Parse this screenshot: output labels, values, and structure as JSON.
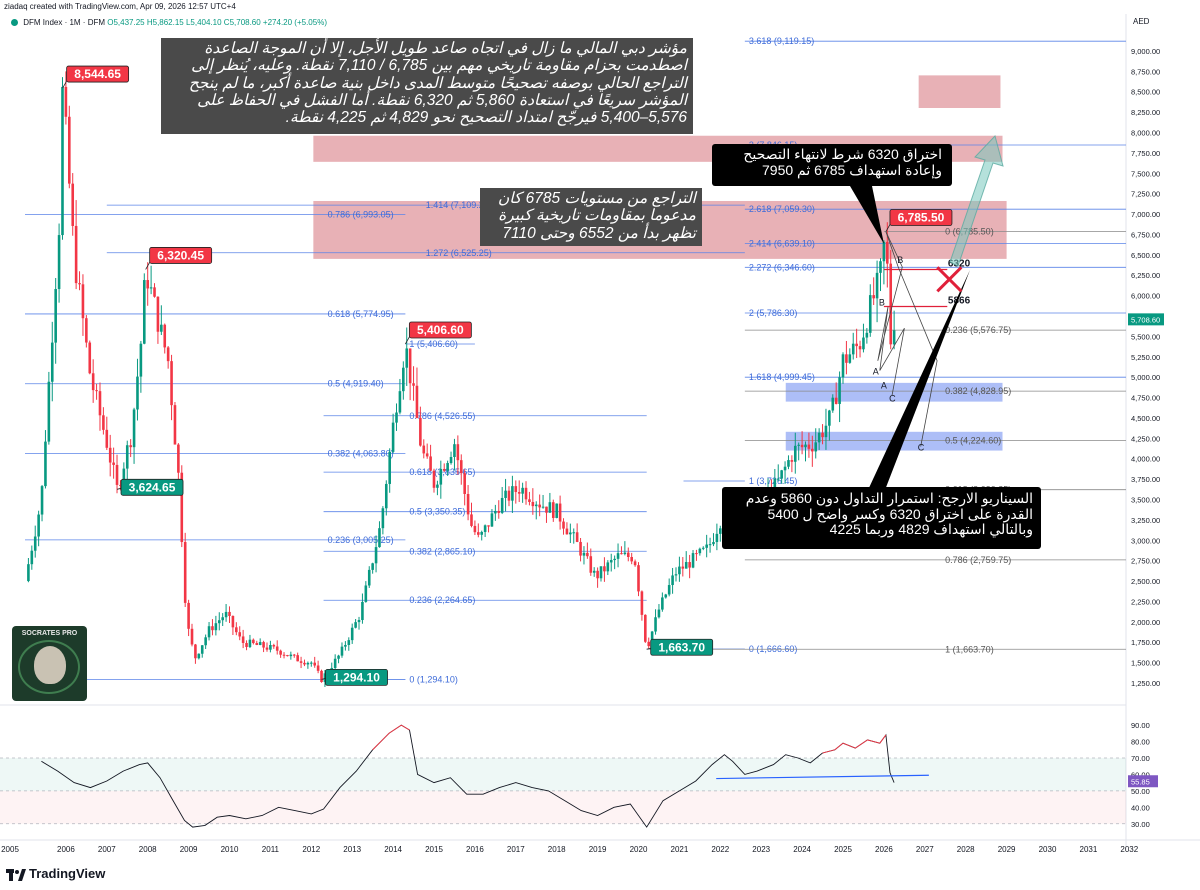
{
  "header": {
    "credit": "ziadaq created with TradingView.com, Apr 09, 2026 12:57 UTC+4",
    "symbol": "DFM Index · 1M · DFM",
    "ohlc": "O5,437.25 H5,862.15 L5,404.10 C5,708.60 +274.20 (+5.05%)"
  },
  "footer": {
    "brand": "TradingView"
  },
  "badge": {
    "text": "SOCRATES PRO"
  },
  "annotations": {
    "main": "مؤشر دبي المالي ما زال في اتجاه صاعد طويل الأجل، إلا أن الموجة الصاعدة اصطدمت بحزام مقاومة تاريخي مهم بين 6,785 / 7,110 نقطة. وعليه، يُنظر إلى التراجع الحالي بوصفه تصحيحًا متوسط المدى داخل بنية صاعدة أكبر، ما لم ينجح المؤشر سريعًا في استعادة 5,860 ثم 6,320 نقطة. أما الفشل في الحفاظ على 5,576–5,400 فيرجّح امتداد التصحيح نحو 4,829 ثم 4,225 نقطة.",
    "resistance": "التراجع من مستويات 6785 كان مدعوما بمقاومات تاريخية كبيرة تظهر بدأ من 6552 وحتى 7110",
    "breakout": "اختراق 6320 شرط لانتهاء التصحيح وإعادة استهداف 6785 ثم 7950",
    "scenario": "السيناريو الارجح: استمرار التداول دون 5860 وعدم القدرة على اختراق 6320 وكسر واضح ل 5400 وبالتالي استهداف 4829 وربما 4225"
  },
  "chart_data": {
    "type": "candlestick",
    "title": "DFM Index · 1M · DFM",
    "currency": "AED",
    "ylim": [
      1000,
      9250
    ],
    "y_ticks": [
      "1,250.00",
      "1,500.00",
      "1,750.00",
      "2,000.00",
      "2,250.00",
      "2,500.00",
      "2,750.00",
      "3,000.00",
      "3,250.00",
      "3,500.00",
      "3,750.00",
      "4,000.00",
      "4,250.00",
      "4,500.00",
      "4,750.00",
      "5,000.00",
      "5,250.00",
      "5,500.00",
      "5,750.00",
      "6,000.00",
      "6,250.00",
      "6,500.00",
      "6,750.00",
      "7,000.00",
      "7,250.00",
      "7,500.00",
      "7,750.00",
      "8,000.00",
      "8,250.00",
      "8,500.00",
      "8,750.00",
      "9,000.00"
    ],
    "x_ticks": [
      "2005",
      "2006",
      "2007",
      "2008",
      "2009",
      "2010",
      "2011",
      "2012",
      "2013",
      "2014",
      "2015",
      "2016",
      "2017",
      "2018",
      "2019",
      "2020",
      "2021",
      "2022",
      "2023",
      "2024",
      "2025",
      "2026",
      "2027",
      "2028",
      "2029",
      "2030",
      "2031",
      "2032"
    ],
    "last_price": "5,708.60",
    "waypoints": [
      [
        2005.0,
        2500
      ],
      [
        2005.4,
        3500
      ],
      [
        2005.85,
        7000
      ],
      [
        2005.92,
        8544.65
      ],
      [
        2006.2,
        6500
      ],
      [
        2006.6,
        5000
      ],
      [
        2007.0,
        4200
      ],
      [
        2007.25,
        3624.65
      ],
      [
        2007.6,
        4300
      ],
      [
        2007.85,
        5500
      ],
      [
        2007.95,
        6320.45
      ],
      [
        2008.2,
        5800
      ],
      [
        2008.5,
        5200
      ],
      [
        2008.75,
        3800
      ],
      [
        2008.95,
        2000
      ],
      [
        2009.15,
        1550
      ],
      [
        2009.5,
        1900
      ],
      [
        2009.9,
        2100
      ],
      [
        2010.3,
        1750
      ],
      [
        2010.8,
        1700
      ],
      [
        2011.2,
        1650
      ],
      [
        2011.6,
        1550
      ],
      [
        2012.0,
        1500
      ],
      [
        2012.25,
        1294.1
      ],
      [
        2012.7,
        1600
      ],
      [
        2013.2,
        2100
      ],
      [
        2013.7,
        3200
      ],
      [
        2014.05,
        4600
      ],
      [
        2014.3,
        5406.6
      ],
      [
        2014.7,
        4100
      ],
      [
        2015.0,
        3700
      ],
      [
        2015.5,
        4200
      ],
      [
        2015.9,
        3200
      ],
      [
        2016.1,
        3000
      ],
      [
        2016.6,
        3450
      ],
      [
        2017.1,
        3650
      ],
      [
        2017.6,
        3450
      ],
      [
        2018.0,
        3350
      ],
      [
        2018.5,
        2950
      ],
      [
        2018.95,
        2550
      ],
      [
        2019.5,
        2800
      ],
      [
        2019.9,
        2800
      ],
      [
        2020.2,
        1663.7
      ],
      [
        2020.5,
        2150
      ],
      [
        2020.9,
        2600
      ],
      [
        2021.3,
        2750
      ],
      [
        2021.7,
        2900
      ],
      [
        2022.05,
        3300
      ],
      [
        2022.4,
        3500
      ],
      [
        2022.9,
        3400
      ],
      [
        2023.4,
        3700
      ],
      [
        2023.8,
        4100
      ],
      [
        2024.3,
        4200
      ],
      [
        2024.7,
        4500
      ],
      [
        2025.0,
        5200
      ],
      [
        2025.4,
        5400
      ],
      [
        2025.7,
        5900
      ],
      [
        2025.9,
        6200
      ],
      [
        2026.05,
        6785.5
      ],
      [
        2026.15,
        5400
      ],
      [
        2026.25,
        5708.6
      ]
    ],
    "price_labels": [
      {
        "text": "8,544.65",
        "x": 2005.92,
        "y": 8544.65,
        "color": "red"
      },
      {
        "text": "6,320.45",
        "x": 2007.95,
        "y": 6320.45,
        "color": "red"
      },
      {
        "text": "3,624.65",
        "x": 2007.25,
        "y": 3624.65,
        "color": "green"
      },
      {
        "text": "5,406.60",
        "x": 2014.3,
        "y": 5406.6,
        "color": "red"
      },
      {
        "text": "1,294.10",
        "x": 2012.25,
        "y": 1294.1,
        "color": "green"
      },
      {
        "text": "1,663.70",
        "x": 2020.2,
        "y": 1663.7,
        "color": "green"
      },
      {
        "text": "6,785.50",
        "x": 2026.05,
        "y": 6785.5,
        "color": "red"
      }
    ],
    "fib_levels": [
      {
        "label": "3.618 (9,119.15)",
        "y": 9119.15,
        "x0": 2022.6,
        "x1": 2032.4,
        "lx": 2022.6
      },
      {
        "label": "3 (7,846.15)",
        "y": 7846.15,
        "x0": 2022.6,
        "x1": 2032.4,
        "lx": 2022.6
      },
      {
        "label": "2.618 (7,059.30)",
        "y": 7059.3,
        "x0": 2022.6,
        "x1": 2032.4,
        "lx": 2022.6
      },
      {
        "label": "2.414 (6,639.10)",
        "y": 6639.1,
        "x0": 2022.6,
        "x1": 2032.4,
        "lx": 2022.6
      },
      {
        "label": "2.272 (6,346.60)",
        "y": 6346.6,
        "x0": 2022.6,
        "x1": 2032.4,
        "lx": 2022.6
      },
      {
        "label": "2 (5,786.30)",
        "y": 5786.3,
        "x0": 2022.6,
        "x1": 2032.4,
        "lx": 2022.6
      },
      {
        "label": "1.618 (4,999.45)",
        "y": 4999.45,
        "x0": 2022.6,
        "x1": 2032.4,
        "lx": 2022.6
      },
      {
        "label": "1 (3,726.45)",
        "y": 3726.45,
        "x0": 2021.1,
        "x1": 2022.6,
        "lx": 2022.6
      },
      {
        "label": "1.414 (7,109.20)",
        "y": 7109.2,
        "x0": 2007.0,
        "x1": 2022.6,
        "lx": 2014.7
      },
      {
        "label": "1.272 (6,525.25)",
        "y": 6525.25,
        "x0": 2007.0,
        "x1": 2022.6,
        "lx": 2014.7
      },
      {
        "label": "0.786 (6,993.05)",
        "y": 6993.05,
        "x0": 2005.0,
        "x1": 2014.3,
        "lx": 2012.3
      },
      {
        "label": "0.618 (5,774.95)",
        "y": 5774.95,
        "x0": 2005.0,
        "x1": 2014.3,
        "lx": 2012.3
      },
      {
        "label": "0.5 (4,919.40)",
        "y": 4919.4,
        "x0": 2005.0,
        "x1": 2014.3,
        "lx": 2012.3
      },
      {
        "label": "0.382 (4,063.80)",
        "y": 4063.8,
        "x0": 2005.0,
        "x1": 2014.3,
        "lx": 2012.3
      },
      {
        "label": "0.236 (3,005.25)",
        "y": 3005.25,
        "x0": 2005.0,
        "x1": 2014.3,
        "lx": 2012.3
      },
      {
        "label": "0 (1,294.10)",
        "y": 1294.1,
        "x0": 2005.0,
        "x1": 2014.3,
        "lx": 2014.3
      },
      {
        "label": "1 (5,406.60)",
        "y": 5406.6,
        "x0": 2014.3,
        "x1": 2016.0,
        "lx": 2014.3
      },
      {
        "label": "0.786 (4,526.55)",
        "y": 4526.55,
        "x0": 2012.3,
        "x1": 2020.2,
        "lx": 2014.3
      },
      {
        "label": "0.618 (3,835.65)",
        "y": 3835.65,
        "x0": 2012.3,
        "x1": 2020.2,
        "lx": 2014.3
      },
      {
        "label": "0.5 (3,350.35)",
        "y": 3350.35,
        "x0": 2012.3,
        "x1": 2020.2,
        "lx": 2014.3
      },
      {
        "label": "0.382 (2,865.10)",
        "y": 2865.1,
        "x0": 2012.3,
        "x1": 2020.2,
        "lx": 2014.3
      },
      {
        "label": "0.236 (2,264.65)",
        "y": 2264.65,
        "x0": 2012.3,
        "x1": 2020.2,
        "lx": 2014.3
      },
      {
        "label": "0 (1,294.10)",
        "y": 1294.1,
        "x0": 2012.3,
        "x1": 2014.3,
        "lx": 2012.3
      },
      {
        "label": "0 (1,666.60)",
        "y": 1666.6,
        "x0": 2020.2,
        "x1": 2022.6,
        "lx": 2022.6
      },
      {
        "label": "0 (6,785.50)",
        "y": 6785.5,
        "x0": 2026.0,
        "x1": 2032.4,
        "lx": 2027.4
      },
      {
        "label": "0.236 (5,576.75)",
        "y": 5576.75,
        "x0": 2022.6,
        "x1": 2032.4,
        "lx": 2027.4
      },
      {
        "label": "0.382 (4,828.95)",
        "y": 4828.95,
        "x0": 2022.6,
        "x1": 2032.4,
        "lx": 2027.4
      },
      {
        "label": "0.5 (4,224.60)",
        "y": 4224.6,
        "x0": 2022.6,
        "x1": 2032.4,
        "lx": 2027.4
      },
      {
        "label": "0.618 (3,620.25)",
        "y": 3620.25,
        "x0": 2022.6,
        "x1": 2032.4,
        "lx": 2027.4
      },
      {
        "label": "0.786 (2,759.75)",
        "y": 2759.75,
        "x0": 2022.6,
        "x1": 2032.4,
        "lx": 2027.4
      },
      {
        "label": "1 (1,663.70)",
        "y": 1663.7,
        "x0": 2020.2,
        "x1": 2032.4,
        "lx": 2027.4
      }
    ],
    "zones": [
      {
        "color": "red",
        "x0": 2026.85,
        "x1": 2028.85,
        "y0": 8300,
        "y1": 8700
      },
      {
        "color": "red",
        "x0": 2012.05,
        "x1": 2028.9,
        "y0": 7640,
        "y1": 7960
      },
      {
        "color": "red",
        "x0": 2012.05,
        "x1": 2029.0,
        "y0": 6450,
        "y1": 7160
      },
      {
        "color": "blue",
        "x0": 2023.6,
        "x1": 2028.9,
        "y0": 4700,
        "y1": 4930
      },
      {
        "color": "blue",
        "x0": 2023.6,
        "x1": 2028.9,
        "y0": 4100,
        "y1": 4330
      }
    ],
    "key_lines": [
      {
        "text": "6320",
        "y": 6320,
        "x0": 2026.0,
        "x1": 2027.55
      },
      {
        "text": "5866",
        "y": 5866,
        "x0": 2026.0,
        "x1": 2027.55
      }
    ],
    "wave_labels": [
      {
        "text": "B",
        "x": 2026.4,
        "y": 6450
      },
      {
        "text": "B",
        "x": 2025.95,
        "y": 5930
      },
      {
        "text": "A",
        "x": 2025.8,
        "y": 5080
      },
      {
        "text": "A",
        "x": 2026.0,
        "y": 4910
      },
      {
        "text": "C",
        "x": 2026.2,
        "y": 4750
      },
      {
        "text": "C",
        "x": 2026.9,
        "y": 4150
      }
    ],
    "rsi": {
      "ylim": [
        20,
        95
      ],
      "ticks": [
        "30.00",
        "40.00",
        "50.00",
        "60.00",
        "70.00",
        "80.00",
        "90.00"
      ],
      "last": "55.85",
      "waypoints": [
        [
          2005.4,
          68
        ],
        [
          2005.8,
          62
        ],
        [
          2006.2,
          55
        ],
        [
          2006.6,
          52
        ],
        [
          2007.0,
          56
        ],
        [
          2007.4,
          62
        ],
        [
          2007.8,
          66
        ],
        [
          2008.0,
          67
        ],
        [
          2008.3,
          58
        ],
        [
          2008.6,
          45
        ],
        [
          2008.9,
          32
        ],
        [
          2009.1,
          28
        ],
        [
          2009.4,
          29
        ],
        [
          2009.7,
          34
        ],
        [
          2010.0,
          35
        ],
        [
          2010.4,
          33
        ],
        [
          2010.8,
          35
        ],
        [
          2011.2,
          40
        ],
        [
          2011.6,
          38
        ],
        [
          2012.0,
          36
        ],
        [
          2012.3,
          39
        ],
        [
          2012.7,
          52
        ],
        [
          2013.1,
          62
        ],
        [
          2013.5,
          75
        ],
        [
          2013.9,
          85
        ],
        [
          2014.2,
          90
        ],
        [
          2014.4,
          87
        ],
        [
          2014.6,
          60
        ],
        [
          2015.0,
          55
        ],
        [
          2015.4,
          58
        ],
        [
          2015.8,
          48
        ],
        [
          2016.2,
          48
        ],
        [
          2016.6,
          52
        ],
        [
          2017.0,
          55
        ],
        [
          2017.4,
          52
        ],
        [
          2017.8,
          50
        ],
        [
          2018.2,
          44
        ],
        [
          2018.6,
          38
        ],
        [
          2019.0,
          35
        ],
        [
          2019.4,
          40
        ],
        [
          2019.8,
          42
        ],
        [
          2020.2,
          28
        ],
        [
          2020.6,
          44
        ],
        [
          2021.0,
          50
        ],
        [
          2021.4,
          56
        ],
        [
          2021.8,
          66
        ],
        [
          2022.1,
          72
        ],
        [
          2022.3,
          68
        ],
        [
          2022.6,
          60
        ],
        [
          2022.9,
          62
        ],
        [
          2023.3,
          66
        ],
        [
          2023.6,
          72
        ],
        [
          2023.9,
          70
        ],
        [
          2024.2,
          67
        ],
        [
          2024.5,
          73
        ],
        [
          2024.8,
          75
        ],
        [
          2025.0,
          79
        ],
        [
          2025.3,
          76
        ],
        [
          2025.6,
          81
        ],
        [
          2025.9,
          79
        ],
        [
          2026.05,
          84
        ],
        [
          2026.15,
          61
        ],
        [
          2026.25,
          55
        ]
      ],
      "trendline": [
        [
          2021.9,
          57.5
        ],
        [
          2027.1,
          59.5
        ]
      ]
    }
  }
}
